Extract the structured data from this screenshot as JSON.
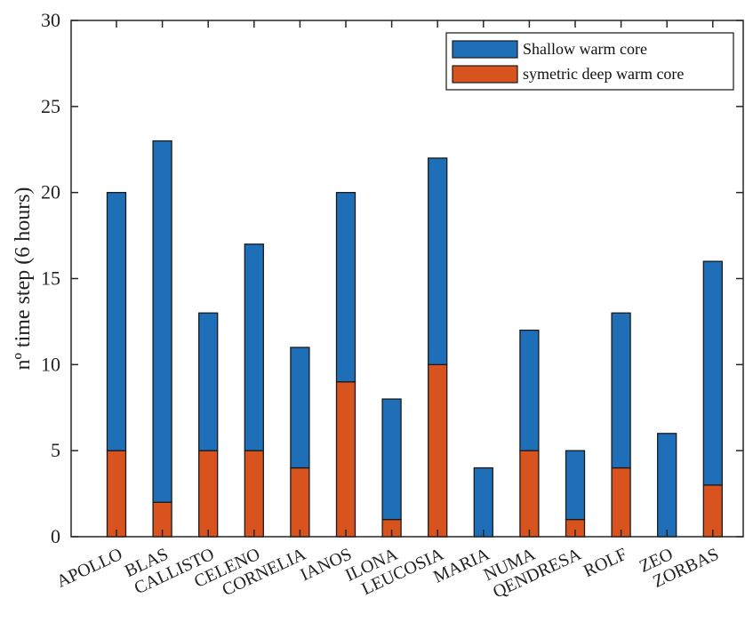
{
  "chart_data": {
    "type": "bar",
    "stacked": true,
    "title": "",
    "xlabel": "",
    "ylabel": "nº time step (6 hours)",
    "ylim": [
      0,
      30
    ],
    "yticks": [
      0,
      5,
      10,
      15,
      20,
      25,
      30
    ],
    "grid": false,
    "legend_position": "top-right",
    "categories": [
      "APOLLO",
      "BLAS",
      "CALLISTO",
      "CELENO",
      "CORNELIA",
      "IANOS",
      "ILONA",
      "LEUCOSIA",
      "MARIA",
      "NUMA",
      "QENDRESA",
      "ROLF",
      "ZEO",
      "ZORBAS"
    ],
    "series": [
      {
        "name": "Shallow warm core",
        "color": "#1f6fb8",
        "values": [
          15,
          21,
          8,
          12,
          7,
          11,
          7,
          12,
          4,
          7,
          4,
          9,
          6,
          13
        ]
      },
      {
        "name": "symetric deep warm core",
        "color": "#d9531e",
        "values": [
          5,
          2,
          5,
          5,
          4,
          9,
          1,
          10,
          0,
          5,
          1,
          4,
          0,
          3
        ]
      }
    ]
  }
}
